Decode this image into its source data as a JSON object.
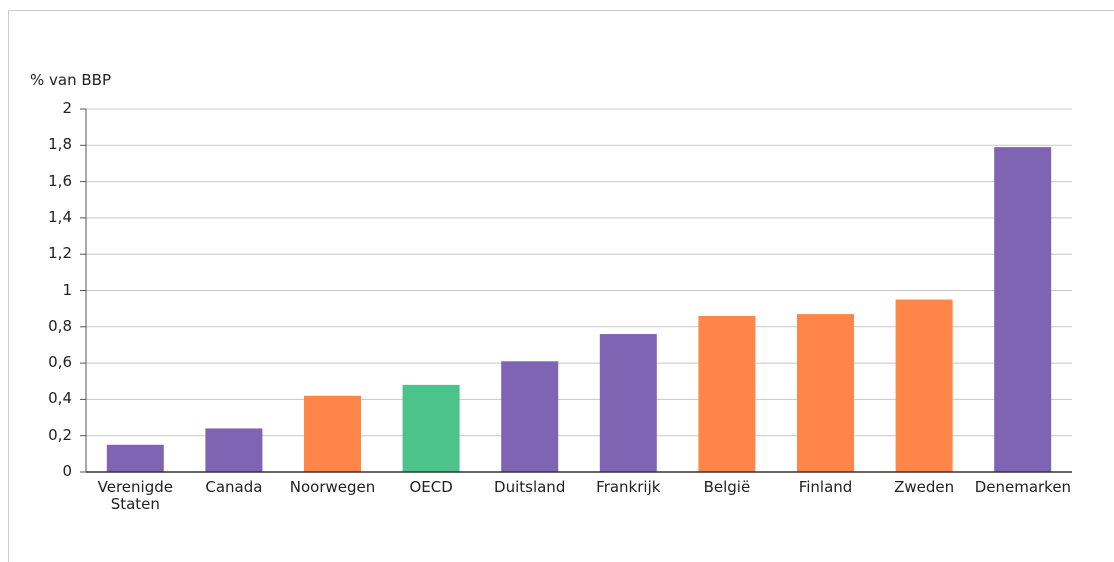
{
  "chart_data": {
    "type": "bar",
    "y_axis_label": "% van BBP",
    "categories": [
      "Verenigde Staten",
      "Canada",
      "Noorwegen",
      "OECD",
      "Duitsland",
      "Frankrijk",
      "België",
      "Finland",
      "Zweden",
      "Denemarken"
    ],
    "values": [
      0.15,
      0.24,
      0.42,
      0.48,
      0.61,
      0.76,
      0.86,
      0.87,
      0.95,
      1.79
    ],
    "colors": [
      "#8064b4",
      "#8064b4",
      "#ff8548",
      "#4cc38a",
      "#8064b4",
      "#8064b4",
      "#ff8548",
      "#ff8548",
      "#ff8548",
      "#8064b4"
    ],
    "ylim": [
      0,
      2
    ],
    "yticks": [
      0,
      {
        "value": 0.2,
        "label": "0,2"
      },
      {
        "value": 0.4,
        "label": "0,4"
      },
      {
        "value": 0.6,
        "label": "0,6"
      },
      {
        "value": 0.8,
        "label": "0,8"
      },
      1,
      {
        "value": 1.2,
        "label": "1,2"
      },
      {
        "value": 1.4,
        "label": "1,4"
      },
      {
        "value": 1.6,
        "label": "1,6"
      },
      {
        "value": 1.8,
        "label": "1,8"
      },
      2
    ],
    "grid": true
  }
}
